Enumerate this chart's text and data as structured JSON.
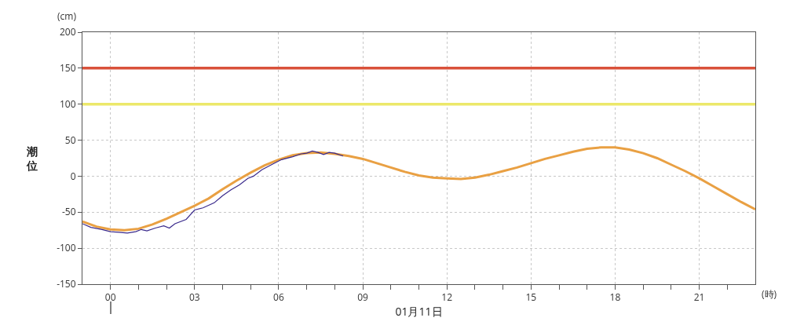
{
  "chart_data": {
    "type": "line",
    "xlabel": "01月11日",
    "ylabel": "潮位",
    "annotations": [
      "(cm)",
      "(時)"
    ],
    "xlim": [
      -1,
      23
    ],
    "xticks": [
      {
        "value": 0,
        "label": "00"
      },
      {
        "value": 1,
        "label": null
      },
      {
        "value": 2,
        "label": null
      },
      {
        "value": 3,
        "label": "03"
      },
      {
        "value": 4,
        "label": null
      },
      {
        "value": 5,
        "label": null
      },
      {
        "value": 6,
        "label": "06"
      },
      {
        "value": 7,
        "label": null
      },
      {
        "value": 8,
        "label": null
      },
      {
        "value": 9,
        "label": "09"
      },
      {
        "value": 10,
        "label": null
      },
      {
        "value": 11,
        "label": null
      },
      {
        "value": 12,
        "label": "12"
      },
      {
        "value": 13,
        "label": null
      },
      {
        "value": 14,
        "label": null
      },
      {
        "value": 15,
        "label": "15"
      },
      {
        "value": 16,
        "label": null
      },
      {
        "value": 17,
        "label": null
      },
      {
        "value": 18,
        "label": "18"
      },
      {
        "value": 19,
        "label": null
      },
      {
        "value": 20,
        "label": null
      },
      {
        "value": 21,
        "label": "21"
      },
      {
        "value": 22,
        "label": null
      }
    ],
    "ylim": [
      -150,
      200
    ],
    "yticks": [
      -150,
      -100,
      -50,
      0,
      50,
      100,
      150,
      200
    ],
    "grid": true,
    "marker": "none",
    "line_style": "solid",
    "ref_lines": [
      {
        "axis": "y",
        "value": 150,
        "color": "#d9513a"
      },
      {
        "axis": "y",
        "value": 100,
        "color": "#ece86a"
      }
    ],
    "series": [
      {
        "color": "#e9a043",
        "x": [
          -1,
          -0.5,
          0,
          0.5,
          1,
          1.5,
          2,
          2.5,
          3,
          3.5,
          4,
          4.5,
          5,
          5.5,
          6,
          6.5,
          7,
          7.5,
          8,
          8.5,
          9,
          9.5,
          10,
          10.5,
          11,
          11.5,
          12,
          12.5,
          13,
          13.5,
          14,
          14.5,
          15,
          15.5,
          16,
          16.5,
          17,
          17.5,
          18,
          18.5,
          19,
          19.5,
          20,
          20.5,
          21,
          21.5,
          22,
          22.5,
          23
        ],
        "values": [
          -63,
          -70,
          -74,
          -75,
          -73,
          -67,
          -59,
          -50,
          -41,
          -31,
          -18,
          -6,
          5,
          15,
          23,
          29,
          32,
          33,
          31,
          28,
          24,
          18,
          12,
          6,
          1,
          -2,
          -3,
          -4,
          -2,
          2,
          7,
          12,
          18,
          24,
          29,
          34,
          38,
          40,
          40,
          37,
          32,
          25,
          16,
          7,
          -3,
          -14,
          -25,
          -36,
          -46
        ]
      },
      {
        "color": "#3a2a8c",
        "x": [
          -1,
          -0.7,
          -0.3,
          0,
          0.3,
          0.6,
          0.9,
          1.1,
          1.3,
          1.6,
          1.9,
          2.1,
          2.3,
          2.7,
          3,
          3.3,
          3.7,
          4,
          4.3,
          4.6,
          4.9,
          5.1,
          5.4,
          5.8,
          6.1,
          6.5,
          6.8,
          7,
          7.2,
          7.4,
          7.6,
          7.8,
          8,
          8.3
        ],
        "values": [
          -66,
          -71,
          -74,
          -77,
          -78,
          -79,
          -77,
          -74,
          -76,
          -72,
          -69,
          -72,
          -66,
          -60,
          -47,
          -44,
          -37,
          -27,
          -19,
          -12,
          -3,
          0,
          9,
          17,
          23,
          27,
          31,
          32,
          35,
          33,
          30,
          33,
          32,
          28
        ]
      }
    ]
  }
}
